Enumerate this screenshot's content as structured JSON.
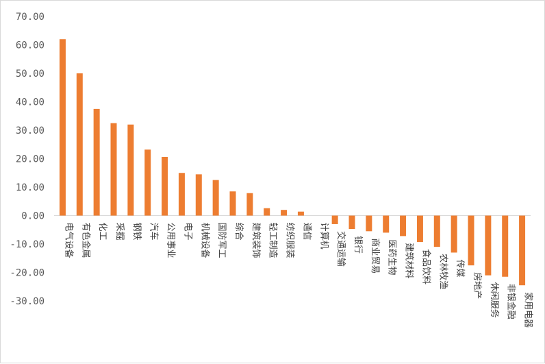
{
  "chart_data": {
    "type": "bar",
    "title": "",
    "xlabel": "",
    "ylabel": "",
    "ylim": [
      -30,
      70
    ],
    "yticks": [
      70,
      60,
      50,
      40,
      30,
      20,
      10,
      0,
      -10,
      -20,
      -30
    ],
    "ytick_labels": [
      "70.00",
      "60.00",
      "50.00",
      "40.00",
      "30.00",
      "20.00",
      "10.00",
      "0.00",
      "-10.00",
      "-20.00",
      "-30.00"
    ],
    "grid": false,
    "legend": "none",
    "bar_color": "#ED7D31",
    "axis_color": "#d9d9d9",
    "categories": [
      "电气设备",
      "有色金属",
      "化工",
      "采掘",
      "钢铁",
      "汽车",
      "公用事业",
      "电子",
      "机械设备",
      "国防军工",
      "综合",
      "建筑装饰",
      "轻工制造",
      "纺织服装",
      "通信",
      "计算机",
      "交通运输",
      "银行",
      "商业贸易",
      "医药生物",
      "建筑材料",
      "食品饮料",
      "农林牧渔",
      "传媒",
      "房地产",
      "休闲服务",
      "非银金融",
      "家用电器"
    ],
    "values": [
      62.0,
      50.0,
      37.5,
      32.5,
      32.0,
      23.2,
      20.6,
      15.0,
      14.5,
      12.5,
      8.5,
      7.9,
      2.6,
      2.0,
      1.4,
      0.0,
      -3.0,
      -4.7,
      -5.5,
      -6.0,
      -7.2,
      -9.3,
      -11.0,
      -13.0,
      -17.5,
      -21.0,
      -21.5,
      -24.5
    ]
  }
}
